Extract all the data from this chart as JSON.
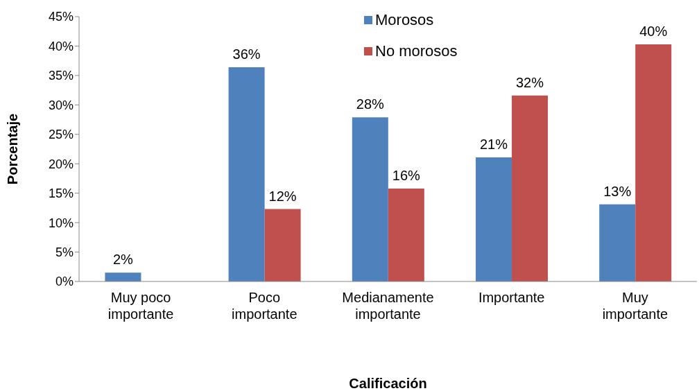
{
  "chart_data": {
    "type": "bar",
    "xlabel": "Calificación",
    "ylabel": "Porcentaje",
    "categories": [
      "Muy poco importante",
      "Poco importante",
      "Medianamente importante",
      "Importante",
      "Muy importante"
    ],
    "series": [
      {
        "name": "Morosos",
        "color": "#4f81bd",
        "values": [
          1.5,
          36.4,
          27.9,
          21.1,
          13.1
        ],
        "value_labels": [
          "2%",
          "36%",
          "28%",
          "21%",
          "13%"
        ]
      },
      {
        "name": "No morosos",
        "color": "#c0504d",
        "values": [
          null,
          12.3,
          15.8,
          31.6,
          40.3
        ],
        "value_labels": [
          null,
          "12%",
          "16%",
          "32%",
          "40%"
        ]
      }
    ],
    "ylim": [
      0,
      45
    ],
    "yticks": [
      {
        "value": 0,
        "label": "0%"
      },
      {
        "value": 5,
        "label": "5%"
      },
      {
        "value": 10,
        "label": "10%"
      },
      {
        "value": 15,
        "label": "15%"
      },
      {
        "value": 20,
        "label": "20%"
      },
      {
        "value": 25,
        "label": "25%"
      },
      {
        "value": 30,
        "label": "30%"
      },
      {
        "value": 35,
        "label": "35%"
      },
      {
        "value": 40,
        "label": "40%"
      },
      {
        "value": 45,
        "label": "45%"
      }
    ],
    "grid": false,
    "legend": "top"
  }
}
